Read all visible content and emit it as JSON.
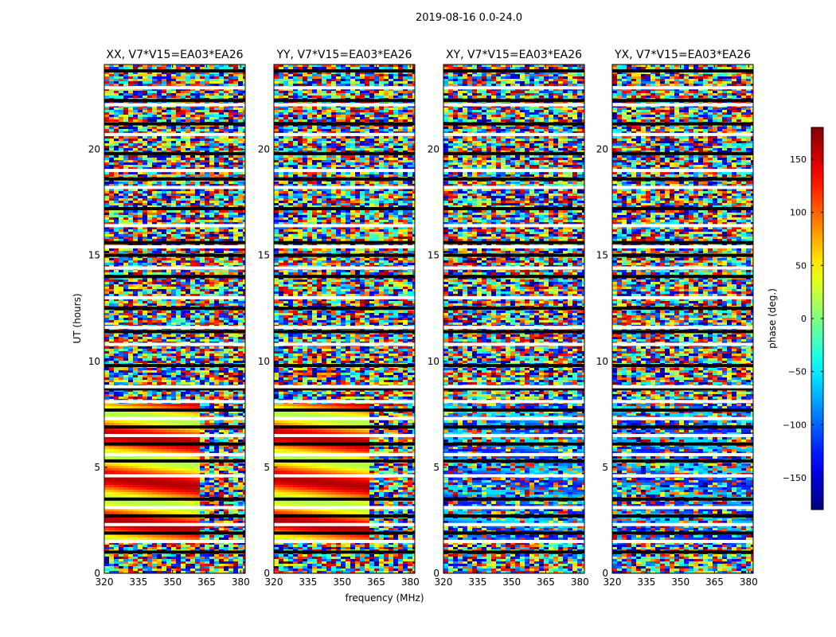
{
  "figure": {
    "suptitle": "2019-08-16 0.0-24.0",
    "ylabel": "UT (hours)",
    "xlabel": "frequency (MHz)"
  },
  "chart_data": {
    "type": "heatmap",
    "x": {
      "range": [
        320,
        382
      ],
      "ticks": [
        320,
        335,
        350,
        365,
        380
      ]
    },
    "y": {
      "range": [
        0,
        24
      ],
      "ticks": [
        0,
        5,
        10,
        15,
        20
      ]
    },
    "colormap": "jet",
    "colorbar": {
      "label": "phase (deg.)",
      "range": [
        -180,
        180
      ],
      "ticks": [
        150,
        100,
        50,
        0,
        -50,
        -100,
        -150
      ],
      "tick_labels": [
        "150",
        "100",
        "50",
        "0",
        "−50",
        "−100",
        "−150"
      ]
    },
    "panels": [
      {
        "title": "XX, V7*V15=EA03*EA26"
      },
      {
        "title": "YY, V7*V15=EA03*EA26"
      },
      {
        "title": "XY, V7*V15=EA03*EA26"
      },
      {
        "title": "YX, V7*V15=EA03*EA26"
      }
    ],
    "flagged_rows_ut": [
      1.0,
      1.5,
      1.9,
      2.3,
      2.7,
      3.1,
      3.5,
      4.6,
      5.3,
      5.6,
      6.1,
      6.5,
      6.9,
      7.3,
      7.7,
      8.1,
      8.7,
      8.8,
      9.8,
      10.8,
      11.4,
      11.6,
      12.5,
      13.0,
      14.0,
      14.4,
      15.0,
      15.4,
      15.6,
      16.4,
      17.2,
      18.2,
      18.6,
      19.0,
      19.8,
      20.7,
      21.2,
      22.1,
      22.3,
      22.9,
      23.7
    ],
    "coherent_phase_ut_range": [
      1.6,
      8.0
    ]
  }
}
